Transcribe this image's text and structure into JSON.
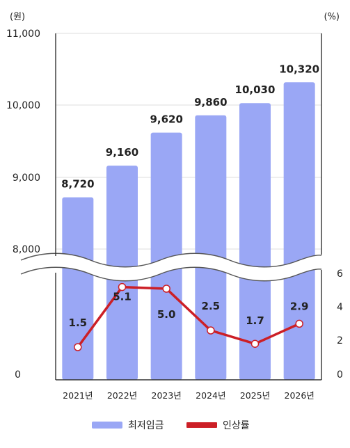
{
  "chart_data": {
    "type": "bar",
    "left_unit": "(원)",
    "right_unit": "(%)",
    "categories": [
      "2021년",
      "2022년",
      "2023년",
      "2024년",
      "2025년",
      "2026년"
    ],
    "left_ticks": [
      "11,000",
      "10,000",
      "9,000",
      "8,000",
      "0"
    ],
    "right_ticks": [
      "6",
      "4",
      "2",
      "0"
    ],
    "series": [
      {
        "name": "최저임금",
        "type": "bar",
        "axis": "left",
        "color": "#9aa7f5",
        "values": [
          8720,
          9160,
          9620,
          9860,
          10030,
          10320
        ],
        "labels": [
          "8,720",
          "9,160",
          "9,620",
          "9,860",
          "10,030",
          "10,320"
        ]
      },
      {
        "name": "인상률",
        "type": "line",
        "axis": "right",
        "color": "#cc1f26",
        "values": [
          1.5,
          5.1,
          5.0,
          2.5,
          1.7,
          2.9
        ],
        "labels": [
          "1.5",
          "5.1",
          "5.0",
          "2.5",
          "1.7",
          "2.9"
        ]
      }
    ],
    "left_axis_break": {
      "below": 8000,
      "above": 0
    },
    "ylim_left": [
      8000,
      11000
    ],
    "ylim_right": [
      0,
      6
    ],
    "grid": true,
    "legend_position": "bottom"
  }
}
